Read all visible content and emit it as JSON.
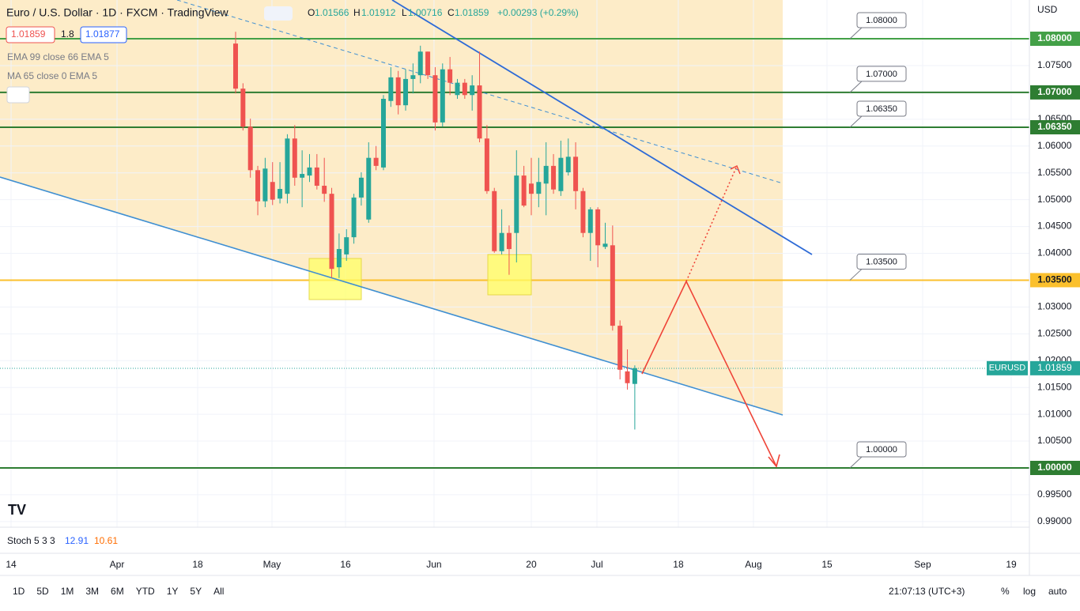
{
  "header": {
    "symbol": "Euro / U.S. Dollar · 1D · FXCM · TradingView",
    "open_key": "O",
    "high_key": "H",
    "low_key": "L",
    "close_key": "C",
    "change": "+0.00293 (+0.29%)"
  },
  "price_boxes": {
    "sell": "1.01859",
    "spread": "1.8",
    "buy": "1.01877"
  },
  "indicators": [
    "EMA 99 close 66 EMA 5",
    "MA 65 close 0 EMA 5"
  ],
  "currency": "USD",
  "stoch": {
    "label": "Stoch 5 3 3",
    "k": "12.91",
    "d": "10.61"
  },
  "toolbar": {
    "ranges": [
      "1D",
      "5D",
      "1M",
      "3M",
      "6M",
      "YTD",
      "1Y",
      "5Y",
      "All"
    ],
    "time": "21:07:13 (UTC+3)",
    "percent": "%",
    "log": "log",
    "auto": "auto"
  },
  "chart_data": {
    "type": "candlestick",
    "symbol_badge": "EURUSD",
    "categories": [
      null,
      null,
      null,
      null,
      null,
      null,
      null,
      null,
      null,
      null,
      null,
      null,
      null,
      null,
      null,
      null,
      null,
      null,
      null,
      null,
      null,
      null,
      null,
      null,
      null,
      null,
      null,
      null,
      null,
      null,
      null,
      null,
      null,
      null,
      null,
      null,
      null,
      null,
      null,
      null,
      null,
      null,
      null,
      null,
      null,
      null,
      null,
      null,
      null,
      null,
      null,
      null,
      null,
      null,
      null
    ],
    "open": [
      1.0791,
      1.0707,
      1.0636,
      1.0555,
      1.0497,
      1.0533,
      1.0502,
      1.0511,
      1.0614,
      1.0541,
      1.0545,
      1.056,
      1.0526,
      1.0511,
      1.0374,
      1.0398,
      1.043,
      1.0504,
      1.0463,
      1.0578,
      1.056,
      1.0684,
      1.0728,
      1.0676,
      1.0725,
      1.0732,
      1.0776,
      1.0732,
      1.0644,
      1.0743,
      1.0695,
      1.0718,
      1.0695,
      1.0713,
      1.0614,
      1.0516,
      1.0404,
      1.0438,
      1.0438,
      1.0545,
      1.053,
      1.0511,
      1.053,
      1.0563,
      1.0516,
      1.0551,
      1.058,
      1.0516,
      1.0438,
      1.0482,
      1.0412,
      1.0415,
      1.0265,
      1.018,
      1.01566
    ],
    "high": [
      1.0813,
      1.0717,
      1.0651,
      1.0563,
      1.0578,
      1.057,
      1.057,
      1.0622,
      1.0639,
      1.0592,
      1.0585,
      1.0585,
      1.0578,
      1.0522,
      1.0437,
      1.0445,
      1.0511,
      1.0551,
      1.0607,
      1.06,
      1.0695,
      1.0747,
      1.074,
      1.0743,
      1.0754,
      1.0787,
      1.0776,
      1.0747,
      1.0754,
      1.0766,
      1.0725,
      1.0725,
      1.0732,
      1.0776,
      1.0639,
      1.0522,
      1.0482,
      1.0452,
      1.0592,
      1.0563,
      1.0578,
      1.0578,
      1.0607,
      1.0585,
      1.061,
      1.0614,
      1.0607,
      1.0522,
      1.0486,
      1.0486,
      1.0457,
      1.0452,
      1.0275,
      1.0221,
      1.01912
    ],
    "low": [
      1.0698,
      1.0629,
      1.0541,
      1.0471,
      1.0486,
      1.049,
      1.0493,
      1.0493,
      1.0526,
      1.0486,
      1.0533,
      1.0519,
      1.0496,
      1.0354,
      1.0354,
      1.0386,
      1.0418,
      1.0489,
      1.0457,
      1.0555,
      1.0555,
      1.0673,
      1.0659,
      1.0666,
      1.0698,
      1.0717,
      1.0725,
      1.0629,
      1.0636,
      1.0695,
      1.0688,
      1.0688,
      1.0666,
      1.0607,
      1.0511,
      1.0401,
      1.0398,
      1.036,
      1.0383,
      1.0486,
      1.0471,
      1.0486,
      1.0471,
      1.0511,
      1.0507,
      1.0545,
      1.0482,
      1.043,
      1.0386,
      1.0374,
      1.0408,
      1.0256,
      1.0165,
      1.0146,
      1.00716
    ],
    "close": [
      1.0707,
      1.0636,
      1.0555,
      1.0497,
      1.0558,
      1.05,
      1.052,
      1.0614,
      1.0541,
      1.0548,
      1.056,
      1.0526,
      1.0511,
      1.0371,
      1.0408,
      1.043,
      1.0504,
      1.0541,
      1.0578,
      1.0563,
      1.0688,
      1.0728,
      1.0676,
      1.0725,
      1.0732,
      1.0776,
      1.0732,
      1.0644,
      1.0743,
      1.0718,
      1.0718,
      1.0695,
      1.0713,
      1.0614,
      1.0516,
      1.0404,
      1.0438,
      1.0408,
      1.0545,
      1.0489,
      1.0511,
      1.0533,
      1.0563,
      1.0519,
      1.0578,
      1.058,
      1.0516,
      1.0438,
      1.0482,
      1.0415,
      1.0418,
      1.0265,
      1.0183,
      1.0158,
      1.01859
    ],
    "up_color": "#26a69a",
    "down_color": "#ef5350",
    "ylim": [
      0.98895,
      1.08722
    ],
    "yticks": [
      {
        "value": 1.075,
        "label": "1.07500"
      },
      {
        "value": 1.065,
        "label": "1.06500"
      },
      {
        "value": 1.06,
        "label": "1.06000"
      },
      {
        "value": 1.055,
        "label": "1.05500"
      },
      {
        "value": 1.05,
        "label": "1.05000"
      },
      {
        "value": 1.045,
        "label": "1.04500"
      },
      {
        "value": 1.04,
        "label": "1.04000"
      },
      {
        "value": 1.03,
        "label": "1.03000"
      },
      {
        "value": 1.025,
        "label": "1.02500"
      },
      {
        "value": 1.02,
        "label": "1.02000"
      },
      {
        "value": 1.015,
        "label": "1.01500"
      },
      {
        "value": 1.01,
        "label": "1.01000"
      },
      {
        "value": 1.005,
        "label": "1.00500"
      },
      {
        "value": 0.995,
        "label": "0.99500"
      },
      {
        "value": 0.99,
        "label": "0.99000"
      }
    ],
    "xlim": [
      -31.87,
      107.38
    ],
    "xticks": [
      {
        "value": -30.37,
        "label": "14"
      },
      {
        "value": -16.04,
        "label": "Apr"
      },
      {
        "value": -5.13,
        "label": "18"
      },
      {
        "value": 4.92,
        "label": "May"
      },
      {
        "value": 14.87,
        "label": "16"
      },
      {
        "value": 26.84,
        "label": "Jun"
      },
      {
        "value": 40.0,
        "label": "20"
      },
      {
        "value": 48.88,
        "label": "Jul"
      },
      {
        "value": 59.89,
        "label": "18"
      },
      {
        "value": 70.05,
        "label": "Aug"
      },
      {
        "value": 80.0,
        "label": "15"
      },
      {
        "value": 92.94,
        "label": "Sep"
      },
      {
        "value": 104.92,
        "label": "19"
      }
    ],
    "levels": [
      {
        "value": 1.08,
        "label": "1.08000",
        "color": "#43a047"
      },
      {
        "value": 1.07,
        "label": "1.07000",
        "color": "#2e7d32"
      },
      {
        "value": 1.0635,
        "label": "1.06350",
        "color": "#2e7d32"
      },
      {
        "value": 1.035,
        "label": "1.03500",
        "color": "#fbc02d"
      },
      {
        "value": 1.0,
        "label": "1.00000",
        "color": "#2e7d32"
      }
    ],
    "grid": true
  }
}
